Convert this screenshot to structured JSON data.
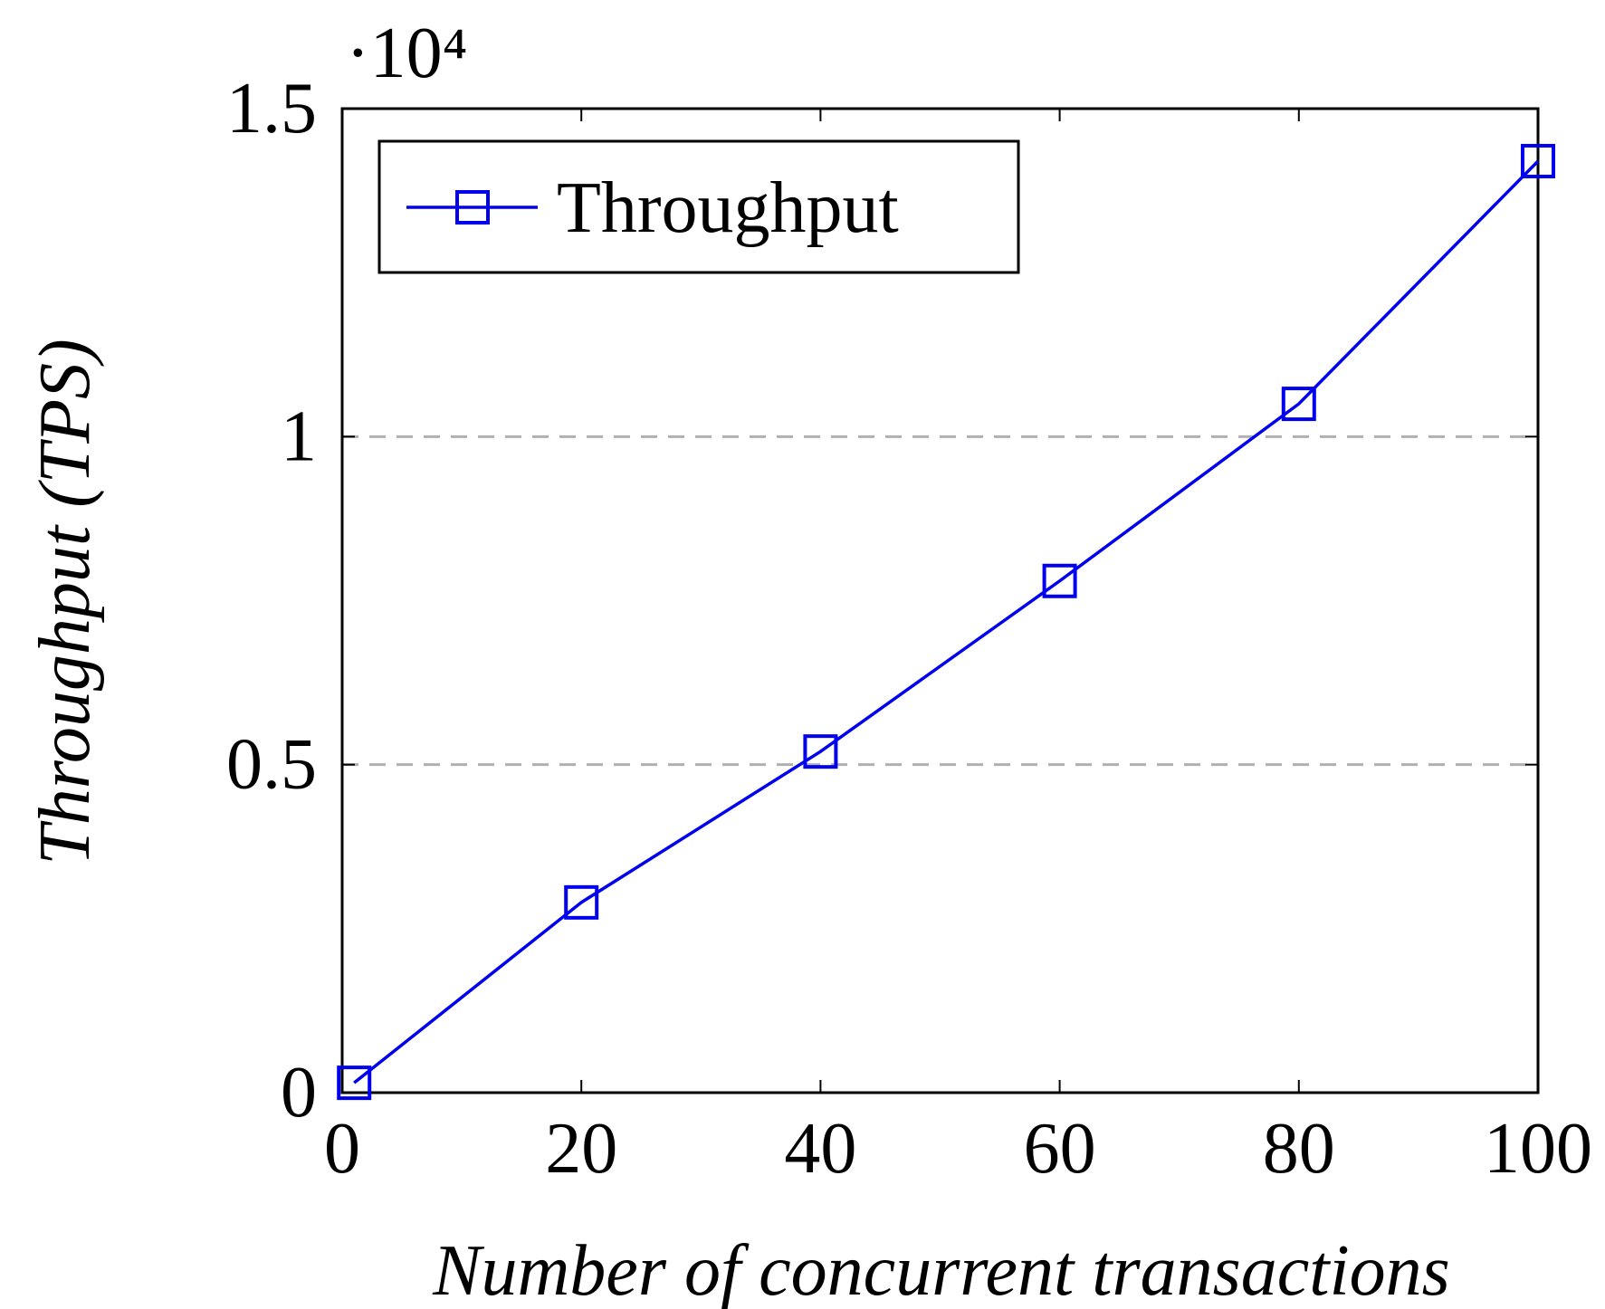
{
  "chart_data": {
    "type": "line",
    "x_label": "Number of concurrent transactions",
    "y_label": "Throughput (TPS)",
    "ytick_multiplier": "·10⁴",
    "x": [
      1,
      20,
      40,
      60,
      80,
      100
    ],
    "series": [
      {
        "name": "Throughput",
        "color": "#0000ee",
        "values": [
          150,
          2900,
          5200,
          7800,
          10500,
          14200
        ]
      }
    ],
    "xlim": [
      0,
      100
    ],
    "xticks": [
      0,
      20,
      40,
      60,
      80,
      100
    ],
    "ylim": [
      0,
      15000
    ],
    "yticks": [
      {
        "value": 0,
        "label": "0"
      },
      {
        "value": 5000,
        "label": "0.5"
      },
      {
        "value": 10000,
        "label": "1"
      },
      {
        "value": 15000,
        "label": "1.5"
      }
    ],
    "grid": true,
    "legend": "upper left"
  }
}
